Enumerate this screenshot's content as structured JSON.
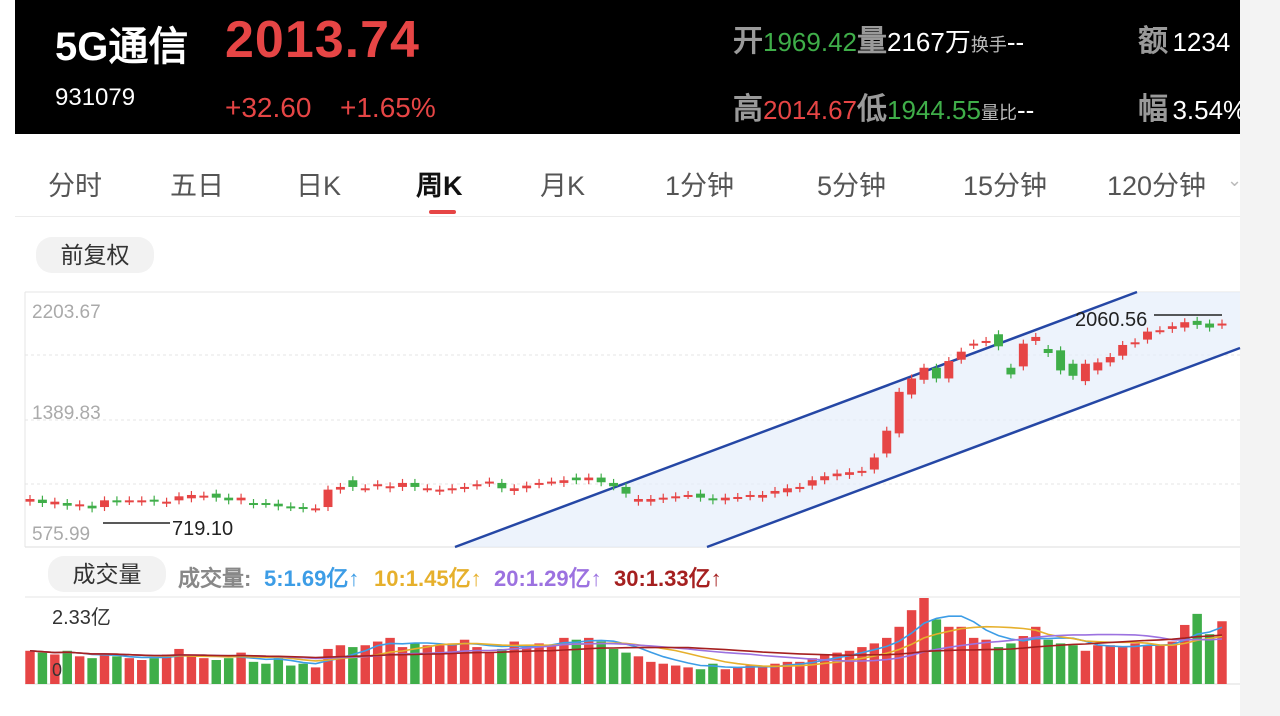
{
  "header": {
    "name": "5G通信",
    "code": "931079",
    "price": "2013.74",
    "change": "+32.60",
    "change_pct": "+1.65%",
    "open_label": "开",
    "open_value": "1969.42",
    "volume_label": "量",
    "volume_value": "2167万",
    "turnover_label": "换手",
    "turnover_value": "--",
    "amount_label": "额",
    "amount_value": "1234",
    "high_label": "高",
    "high_value": "2014.67",
    "low_label": "低",
    "low_value": "1944.55",
    "volratio_label": "量比",
    "volratio_value": "--",
    "amplitude_label": "幅",
    "amplitude_value": "3.54%"
  },
  "tabs": [
    "分时",
    "五日",
    "日K",
    "周K",
    "月K",
    "1分钟",
    "5分钟",
    "15分钟",
    "120分钟"
  ],
  "active_tab": "周K",
  "adjust_label": "前复权",
  "chart_data": {
    "type": "candlestick",
    "y_ticks": [
      "2203.67",
      "1389.83",
      "575.99"
    ],
    "annotations": {
      "high_label": "2060.56",
      "low_label": "719.10"
    },
    "channel": "ascending",
    "candles": [
      {
        "o": 780,
        "c": 800
      },
      {
        "o": 795,
        "c": 770
      },
      {
        "o": 760,
        "c": 780
      },
      {
        "o": 770,
        "c": 750
      },
      {
        "o": 745,
        "c": 760
      },
      {
        "o": 750,
        "c": 730
      },
      {
        "o": 740,
        "c": 790
      },
      {
        "o": 790,
        "c": 780
      },
      {
        "o": 785,
        "c": 790
      },
      {
        "o": 780,
        "c": 790
      },
      {
        "o": 795,
        "c": 780
      },
      {
        "o": 770,
        "c": 780
      },
      {
        "o": 790,
        "c": 820
      },
      {
        "o": 805,
        "c": 830
      },
      {
        "o": 820,
        "c": 825
      },
      {
        "o": 840,
        "c": 810
      },
      {
        "o": 810,
        "c": 790
      },
      {
        "o": 790,
        "c": 810
      },
      {
        "o": 770,
        "c": 760
      },
      {
        "o": 770,
        "c": 765
      },
      {
        "o": 765,
        "c": 745
      },
      {
        "o": 745,
        "c": 740
      },
      {
        "o": 740,
        "c": 730
      },
      {
        "o": 730,
        "c": 730
      },
      {
        "o": 740,
        "c": 870
      },
      {
        "o": 870,
        "c": 890
      },
      {
        "o": 940,
        "c": 890
      },
      {
        "o": 880,
        "c": 880
      },
      {
        "o": 900,
        "c": 910
      },
      {
        "o": 880,
        "c": 895
      },
      {
        "o": 890,
        "c": 920
      },
      {
        "o": 920,
        "c": 890
      },
      {
        "o": 880,
        "c": 880
      },
      {
        "o": 860,
        "c": 870
      },
      {
        "o": 870,
        "c": 880
      },
      {
        "o": 880,
        "c": 890
      },
      {
        "o": 900,
        "c": 910
      },
      {
        "o": 920,
        "c": 930
      },
      {
        "o": 920,
        "c": 880
      },
      {
        "o": 860,
        "c": 880
      },
      {
        "o": 880,
        "c": 900
      },
      {
        "o": 910,
        "c": 920
      },
      {
        "o": 930,
        "c": 930
      },
      {
        "o": 920,
        "c": 940
      },
      {
        "o": 960,
        "c": 940
      },
      {
        "o": 940,
        "c": 960
      },
      {
        "o": 960,
        "c": 925
      },
      {
        "o": 920,
        "c": 895
      },
      {
        "o": 890,
        "c": 840
      },
      {
        "o": 780,
        "c": 800
      },
      {
        "o": 780,
        "c": 800
      },
      {
        "o": 800,
        "c": 810
      },
      {
        "o": 810,
        "c": 820
      },
      {
        "o": 830,
        "c": 830
      },
      {
        "o": 840,
        "c": 810
      },
      {
        "o": 805,
        "c": 790
      },
      {
        "o": 790,
        "c": 810
      },
      {
        "o": 810,
        "c": 815
      },
      {
        "o": 820,
        "c": 830
      },
      {
        "o": 810,
        "c": 830
      },
      {
        "o": 840,
        "c": 860
      },
      {
        "o": 850,
        "c": 880
      },
      {
        "o": 880,
        "c": 890
      },
      {
        "o": 900,
        "c": 940
      },
      {
        "o": 940,
        "c": 970
      },
      {
        "o": 970,
        "c": 990
      },
      {
        "o": 980,
        "c": 1000
      },
      {
        "o": 1000,
        "c": 1010
      },
      {
        "o": 1020,
        "c": 1110
      },
      {
        "o": 1140,
        "c": 1310
      },
      {
        "o": 1290,
        "c": 1600
      },
      {
        "o": 1580,
        "c": 1700
      },
      {
        "o": 1690,
        "c": 1780
      },
      {
        "o": 1780,
        "c": 1700
      },
      {
        "o": 1700,
        "c": 1830
      },
      {
        "o": 1840,
        "c": 1900
      },
      {
        "o": 1950,
        "c": 1960
      },
      {
        "o": 1970,
        "c": 1980
      },
      {
        "o": 2030,
        "c": 1940
      },
      {
        "o": 1780,
        "c": 1730
      },
      {
        "o": 1790,
        "c": 1960
      },
      {
        "o": 1980,
        "c": 2010
      },
      {
        "o": 1920,
        "c": 1890
      },
      {
        "o": 1910,
        "c": 1760
      },
      {
        "o": 1810,
        "c": 1720
      },
      {
        "o": 1680,
        "c": 1810
      },
      {
        "o": 1760,
        "c": 1820
      },
      {
        "o": 1820,
        "c": 1860
      },
      {
        "o": 1870,
        "c": 1950
      },
      {
        "o": 1960,
        "c": 1970
      },
      {
        "o": 1990,
        "c": 2050
      },
      {
        "o": 2060,
        "c": 2060
      },
      {
        "o": 2070,
        "c": 2090
      },
      {
        "o": 2080,
        "c": 2120
      },
      {
        "o": 2130,
        "c": 2100
      },
      {
        "o": 2110,
        "c": 2080
      },
      {
        "o": 2100,
        "c": 2110
      }
    ]
  },
  "volume": {
    "label": "成交量",
    "legend_title": "成交量:",
    "ma5": "5:1.69亿↑",
    "ma10": "10:1.45亿↑",
    "ma20": "20:1.29亿↑",
    "ma30": "30:1.33亿↑",
    "max_label": "2.33亿",
    "zero_label": "0",
    "colors": {
      "ma5": "#3d9de6",
      "ma10": "#e6b02c",
      "ma20": "#9c72e0",
      "ma30": "#a52020",
      "up": "#e64545",
      "down": "#3fae49"
    },
    "values": [
      0.9,
      0.85,
      0.8,
      0.9,
      0.75,
      0.7,
      0.8,
      0.75,
      0.7,
      0.65,
      0.7,
      0.8,
      0.95,
      0.75,
      0.7,
      0.65,
      0.7,
      0.85,
      0.6,
      0.55,
      0.7,
      0.5,
      0.55,
      0.45,
      0.95,
      1.05,
      1.0,
      1.05,
      1.15,
      1.25,
      1.0,
      1.1,
      1.05,
      1.05,
      1.1,
      1.2,
      1.0,
      0.85,
      0.95,
      1.15,
      1.05,
      1.1,
      1.05,
      1.25,
      1.2,
      1.25,
      1.15,
      0.95,
      0.85,
      0.75,
      0.6,
      0.55,
      0.5,
      0.45,
      0.4,
      0.55,
      0.4,
      0.45,
      0.5,
      0.45,
      0.55,
      0.6,
      0.6,
      0.7,
      0.8,
      0.85,
      0.9,
      1.0,
      1.1,
      1.25,
      1.55,
      2.0,
      2.33,
      1.75,
      1.55,
      1.55,
      1.25,
      1.2,
      1.0,
      1.1,
      1.3,
      1.55,
      1.2,
      1.1,
      1.05,
      0.9,
      1.05,
      1.05,
      1.0,
      1.1,
      1.05,
      1.05,
      1.15,
      1.6,
      1.9,
      1.35,
      1.7
    ]
  }
}
